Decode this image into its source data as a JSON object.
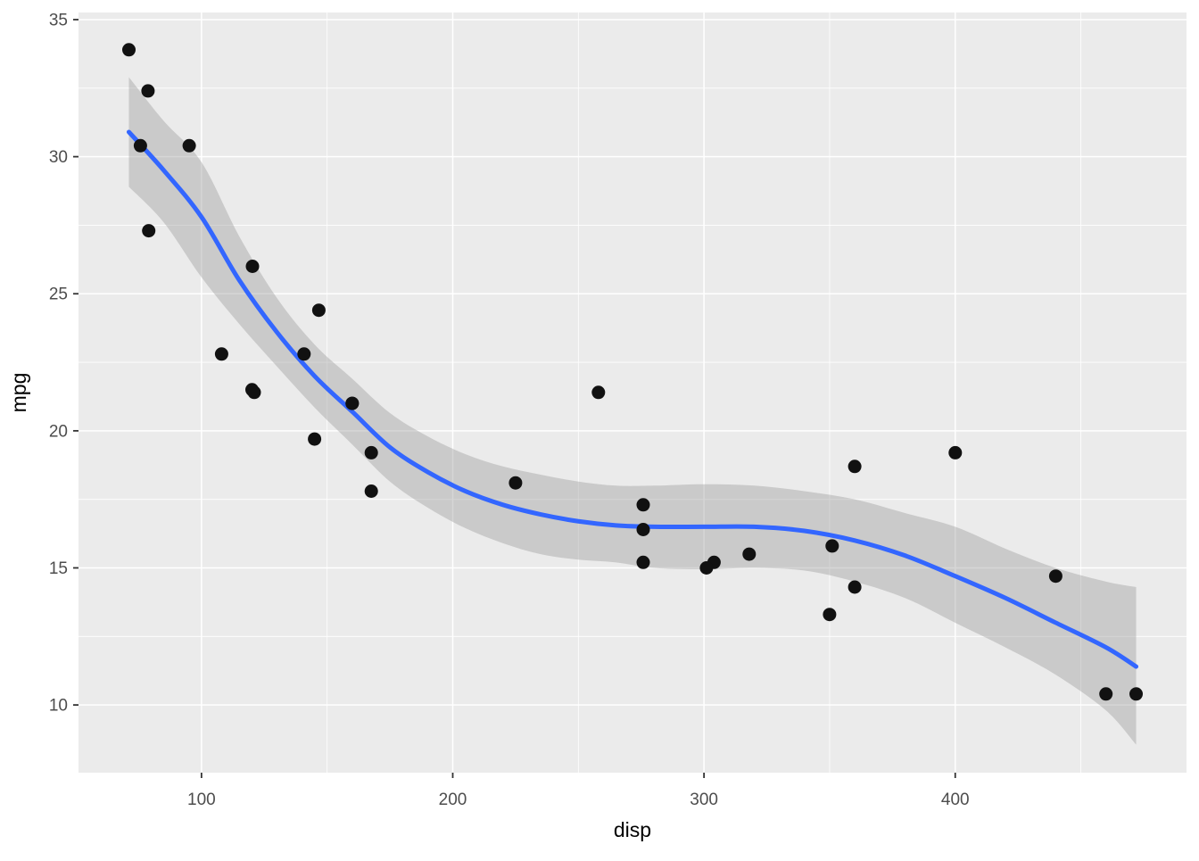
{
  "figure": {
    "title": "",
    "x_axis_title": "disp",
    "y_axis_title": "mpg"
  },
  "chart_data": {
    "type": "scatter",
    "title": "",
    "xlabel": "disp",
    "ylabel": "mpg",
    "xlim": [
      51.05,
      492.05
    ],
    "ylim": [
      7.53,
      35.26
    ],
    "x_ticks": [
      100,
      200,
      300,
      400
    ],
    "y_ticks": [
      10,
      15,
      20,
      25,
      30,
      35
    ],
    "x_minor_gridlines": [
      150,
      250,
      350,
      450
    ],
    "y_minor_gridlines": [
      12.5,
      17.5,
      22.5,
      27.5,
      32.5
    ],
    "grid": true,
    "legend": "none",
    "points_xy": [
      [
        160.0,
        21.0
      ],
      [
        160.0,
        21.0
      ],
      [
        108.0,
        22.8
      ],
      [
        258.0,
        21.4
      ],
      [
        360.0,
        18.7
      ],
      [
        225.0,
        18.1
      ],
      [
        360.0,
        14.3
      ],
      [
        146.7,
        24.4
      ],
      [
        140.8,
        22.8
      ],
      [
        167.6,
        19.2
      ],
      [
        167.6,
        17.8
      ],
      [
        275.8,
        16.4
      ],
      [
        275.8,
        17.3
      ],
      [
        275.8,
        15.2
      ],
      [
        472.0,
        10.4
      ],
      [
        460.0,
        10.4
      ],
      [
        440.0,
        14.7
      ],
      [
        78.7,
        32.4
      ],
      [
        75.7,
        30.4
      ],
      [
        71.1,
        33.9
      ],
      [
        120.1,
        21.5
      ],
      [
        318.0,
        15.5
      ],
      [
        304.0,
        15.2
      ],
      [
        350.0,
        13.3
      ],
      [
        400.0,
        19.2
      ],
      [
        79.0,
        27.3
      ],
      [
        120.3,
        26.0
      ],
      [
        95.1,
        30.4
      ],
      [
        351.0,
        15.8
      ],
      [
        145.0,
        19.7
      ],
      [
        301.0,
        15.0
      ],
      [
        121.0,
        21.4
      ]
    ],
    "smooth_line_xy": [
      [
        71.1,
        30.9
      ],
      [
        85,
        29.5
      ],
      [
        100,
        27.8
      ],
      [
        115,
        25.5
      ],
      [
        130,
        23.6
      ],
      [
        145,
        22.0
      ],
      [
        160,
        20.7
      ],
      [
        175,
        19.4
      ],
      [
        190,
        18.5
      ],
      [
        205,
        17.8
      ],
      [
        220,
        17.3
      ],
      [
        235,
        16.95
      ],
      [
        250,
        16.7
      ],
      [
        265,
        16.55
      ],
      [
        280,
        16.5
      ],
      [
        300,
        16.5
      ],
      [
        320,
        16.5
      ],
      [
        340,
        16.35
      ],
      [
        360,
        16.0
      ],
      [
        380,
        15.45
      ],
      [
        400,
        14.7
      ],
      [
        420,
        13.9
      ],
      [
        440,
        13.0
      ],
      [
        460,
        12.1
      ],
      [
        472,
        11.4
      ]
    ],
    "ribbon_x_lower_upper": [
      [
        71.1,
        28.9,
        32.9
      ],
      [
        85,
        27.6,
        31.3
      ],
      [
        100,
        25.6,
        29.8
      ],
      [
        115,
        23.9,
        27.1
      ],
      [
        130,
        22.35,
        24.85
      ],
      [
        145,
        20.85,
        23.15
      ],
      [
        160,
        19.5,
        21.9
      ],
      [
        175,
        18.15,
        20.65
      ],
      [
        190,
        17.2,
        19.8
      ],
      [
        205,
        16.45,
        19.15
      ],
      [
        220,
        15.9,
        18.7
      ],
      [
        235,
        15.5,
        18.4
      ],
      [
        250,
        15.3,
        18.15
      ],
      [
        265,
        15.2,
        18.0
      ],
      [
        280,
        15.0,
        18.0
      ],
      [
        300,
        14.95,
        18.05
      ],
      [
        320,
        15.0,
        18.0
      ],
      [
        340,
        14.9,
        17.8
      ],
      [
        360,
        14.5,
        17.5
      ],
      [
        380,
        13.9,
        17.0
      ],
      [
        400,
        13.0,
        16.5
      ],
      [
        420,
        12.1,
        15.7
      ],
      [
        440,
        11.1,
        15.0
      ],
      [
        460,
        9.8,
        14.5
      ],
      [
        472,
        8.55,
        14.3
      ]
    ],
    "colors": {
      "page_background": "#FFFFFF",
      "panel_background": "#EBEBEB",
      "gridline": "#FFFFFF",
      "point": "#111111",
      "smooth_line": "#3366FF",
      "ribbon_fill": "rgba(153,153,153,0.4)",
      "tick_mark": "#333333",
      "tick_label": "#4D4D4D",
      "axis_title": "#000000"
    }
  }
}
